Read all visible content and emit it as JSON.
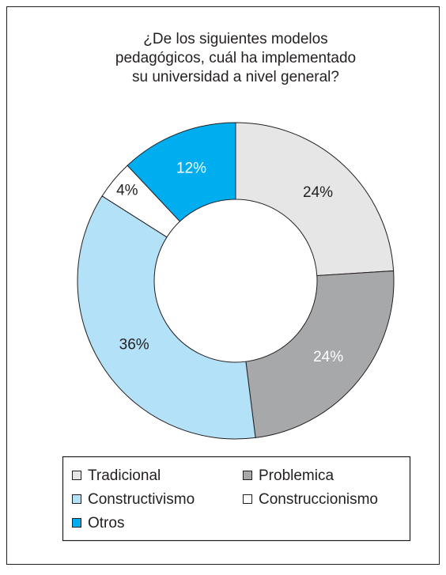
{
  "chart_data": {
    "type": "donut",
    "title": [
      "¿De los siguientes modelos",
      "pedagógicos, cuál ha implementado",
      "su universidad a nivel general?"
    ],
    "categories": [
      "Tradicional",
      "Problemica",
      "Constructivismo",
      "Construccionismo",
      "Otros"
    ],
    "values": [
      24,
      24,
      36,
      4,
      12
    ],
    "value_labels": [
      "24%",
      "24%",
      "36%",
      "4%",
      "12%"
    ],
    "colors": [
      "#e6e6e6",
      "#a7a8aa",
      "#b3e1f8",
      "#ffffff",
      "#00aeef"
    ],
    "label_colors": [
      "#231f20",
      "#ffffff",
      "#231f20",
      "#231f20",
      "#ffffff"
    ]
  }
}
